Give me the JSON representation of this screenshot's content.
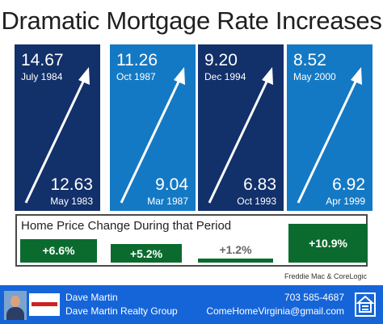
{
  "title": "Dramatic Mortgage Rate Increases",
  "colors": {
    "dark_navy": "#12306a",
    "bright_blue": "#1479c4",
    "green": "#0b6b2f",
    "footer_blue": "#1565d8"
  },
  "chart_data": [
    {
      "type": "bar",
      "title": "Dramatic Mortgage Rate Increases",
      "panels": [
        {
          "start_rate": "12.63",
          "start_date": "May 1983",
          "end_rate": "14.67",
          "end_date": "July 1984",
          "color": "#12306a"
        },
        {
          "start_rate": "9.04",
          "start_date": "Mar 1987",
          "end_rate": "11.26",
          "end_date": "Oct 1987",
          "color": "#1479c4"
        },
        {
          "start_rate": "6.83",
          "start_date": "Oct 1993",
          "end_rate": "9.20",
          "end_date": "Dec 1994",
          "color": "#12306a"
        },
        {
          "start_rate": "6.92",
          "start_date": "Apr 1999",
          "end_rate": "8.52",
          "end_date": "May 2000",
          "color": "#1479c4"
        }
      ]
    },
    {
      "type": "bar",
      "title": "Home Price Change During that Period",
      "categories": [
        "",
        "",
        "",
        ""
      ],
      "values": [
        6.6,
        5.2,
        1.2,
        10.9
      ],
      "labels": [
        "+6.6%",
        "+5.2%",
        "+1.2%",
        "+10.9%"
      ],
      "color": "#0b6b2f"
    }
  ],
  "source": "Freddie Mac & CoreLogic",
  "footer": {
    "name": "Dave Martin",
    "company": "Dave Martin Realty Group",
    "phone": "703 585-4687",
    "email": "ComeHomeVirginia@gmail.com",
    "photo_icon": "agent-photo",
    "logo_icon": "realty-logo",
    "housing_icon": "equal-housing-icon"
  }
}
